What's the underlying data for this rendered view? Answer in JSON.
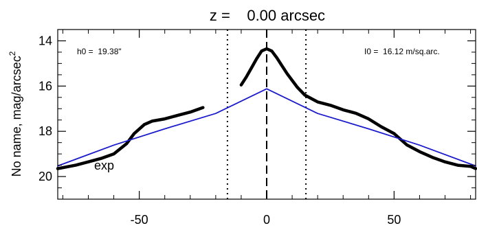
{
  "chart_data": {
    "type": "line",
    "title": "z =    0.00 arcsec",
    "xlabel": "",
    "ylabel": "No name, mag/arcsec",
    "ylabel_superscript": "2",
    "xlim": [
      -82,
      82
    ],
    "ylim": [
      21.0,
      13.5
    ],
    "y_inverted": true,
    "x_ticks": [
      -50,
      0,
      50
    ],
    "x_tick_labels": [
      "-50",
      "0",
      "50"
    ],
    "y_ticks": [
      14,
      16,
      18,
      20
    ],
    "y_tick_labels": [
      "14",
      "16",
      "18",
      "20"
    ],
    "grid": false,
    "annotations": {
      "h0": "h0 =  19.38\"",
      "I0": "I0 =  16.12 m/sq.arc.",
      "fit_label": "exp"
    },
    "vertical_lines": [
      {
        "x": -15.4,
        "style": "dotted"
      },
      {
        "x": 0,
        "style": "dashed"
      },
      {
        "x": 15.4,
        "style": "dotted"
      }
    ],
    "series": [
      {
        "style": "thick",
        "color": "#000000",
        "segments": [
          {
            "x": [
              -82,
              -75,
              -70,
              -65,
              -60,
              -55,
              -52,
              -50,
              -48,
              -45,
              -40,
              -35,
              -30,
              -25
            ],
            "y": [
              19.65,
              19.5,
              19.35,
              19.2,
              19.0,
              18.55,
              18.1,
              17.9,
              17.7,
              17.55,
              17.45,
              17.3,
              17.15,
              16.95
            ]
          },
          {
            "x": [
              -10,
              -8,
              -6,
              -4,
              -2,
              0,
              2,
              4,
              6,
              8,
              10,
              12,
              15,
              20,
              25,
              30,
              35,
              40,
              45,
              50,
              55,
              60,
              65,
              70,
              75,
              80,
              82
            ],
            "y": [
              15.95,
              15.6,
              15.2,
              14.8,
              14.45,
              14.35,
              14.45,
              14.75,
              15.1,
              15.45,
              15.75,
              16.05,
              16.4,
              16.7,
              16.85,
              17.05,
              17.2,
              17.45,
              17.8,
              18.1,
              18.6,
              18.9,
              19.15,
              19.35,
              19.5,
              19.55,
              19.65
            ]
          }
        ]
      },
      {
        "style": "thin",
        "color": "#1a1acc",
        "h0": 19.38,
        "I0": 16.12,
        "x": [
          -82,
          -60,
          -40,
          -20,
          0,
          20,
          40,
          60,
          82
        ],
        "y": [
          19.53,
          18.61,
          17.89,
          17.21,
          16.12,
          17.21,
          17.89,
          18.61,
          19.53
        ]
      }
    ]
  }
}
